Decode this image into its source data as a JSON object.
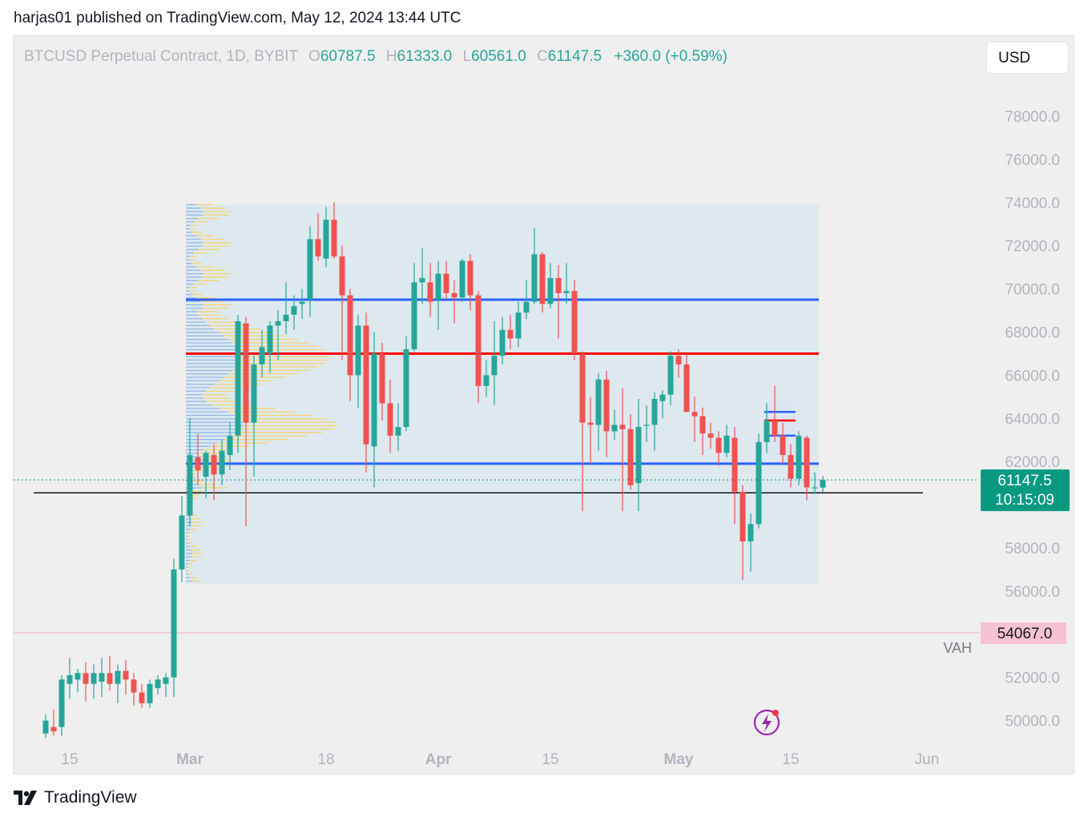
{
  "header": {
    "published_text": "harjas01 published on TradingView.com, May 12, 2024 13:44 UTC"
  },
  "symbol": {
    "name": "BTCUSD Perpetual Contract, 1D, BYBIT",
    "o_label": "O",
    "o_value": "60787.5",
    "h_label": "H",
    "h_value": "61333.0",
    "l_label": "L",
    "l_value": "60561.0",
    "c_label": "C",
    "c_value": "61147.5",
    "change": "+360.0 (+0.59%)"
  },
  "currency_button": "USD",
  "colors": {
    "up": "#26a69a",
    "down": "#ef5350",
    "blue_line": "#2962ff",
    "red_line": "#ff0000",
    "vp_blue": "#90b7ea",
    "vp_yellow": "#f7d56e",
    "vp_box": "#dbe6ef",
    "last_price_bg": "#089981",
    "alert_bg": "#f7c2d1"
  },
  "price_axis": {
    "ticks": [
      "78000.0",
      "76000.0",
      "74000.0",
      "72000.0",
      "70000.0",
      "68000.0",
      "66000.0",
      "64000.0",
      "62000.0",
      "58000.0",
      "56000.0",
      "52000.0",
      "50000.0"
    ],
    "last_price_label": "61147.5",
    "countdown_label": "10:15:09",
    "alert_label": "54067.0",
    "vah_label": "VAH"
  },
  "time_axis": {
    "labels": [
      "15",
      "Mar",
      "18",
      "Apr",
      "15",
      "May",
      "15",
      "Jun"
    ]
  },
  "chart_data": {
    "type": "candlestick",
    "series_name": "BTCUSD Perpetual Contract, 1D, BYBIT",
    "ylim": [
      49000,
      80000
    ],
    "x_label_positions": [
      {
        "label": "15",
        "day": 0
      },
      {
        "label": "Mar",
        "day": 15
      },
      {
        "label": "18",
        "day": 32
      },
      {
        "label": "Apr",
        "day": 46
      },
      {
        "label": "15",
        "day": 60
      },
      {
        "label": "May",
        "day": 76
      },
      {
        "label": "15",
        "day": 90
      },
      {
        "label": "Jun",
        "day": 107
      }
    ],
    "candles": [
      {
        "day": -3,
        "o": 49400,
        "h": 50300,
        "l": 49200,
        "c": 50000
      },
      {
        "day": -2,
        "o": 49700,
        "h": 50500,
        "l": 49300,
        "c": 49500
      },
      {
        "day": -1,
        "o": 49700,
        "h": 52100,
        "l": 49300,
        "c": 51900
      },
      {
        "day": 0,
        "o": 51700,
        "h": 52900,
        "l": 51000,
        "c": 52100
      },
      {
        "day": 1,
        "o": 51900,
        "h": 52400,
        "l": 51300,
        "c": 52200
      },
      {
        "day": 2,
        "o": 52200,
        "h": 52700,
        "l": 50900,
        "c": 51700
      },
      {
        "day": 3,
        "o": 51700,
        "h": 52600,
        "l": 51000,
        "c": 52200
      },
      {
        "day": 4,
        "o": 51800,
        "h": 52900,
        "l": 51100,
        "c": 52200
      },
      {
        "day": 5,
        "o": 52200,
        "h": 53000,
        "l": 51400,
        "c": 51700
      },
      {
        "day": 6,
        "o": 51700,
        "h": 52600,
        "l": 50800,
        "c": 52300
      },
      {
        "day": 7,
        "o": 52300,
        "h": 52800,
        "l": 51200,
        "c": 51900
      },
      {
        "day": 8,
        "o": 51900,
        "h": 52200,
        "l": 50700,
        "c": 51300
      },
      {
        "day": 9,
        "o": 51300,
        "h": 51700,
        "l": 50600,
        "c": 50800
      },
      {
        "day": 10,
        "o": 50800,
        "h": 51900,
        "l": 50600,
        "c": 51700
      },
      {
        "day": 11,
        "o": 51500,
        "h": 52100,
        "l": 51200,
        "c": 51900
      },
      {
        "day": 12,
        "o": 51700,
        "h": 52200,
        "l": 51100,
        "c": 52000
      },
      {
        "day": 13,
        "o": 52000,
        "h": 57500,
        "l": 51100,
        "c": 57000
      },
      {
        "day": 14,
        "o": 57000,
        "h": 60400,
        "l": 56400,
        "c": 59500
      },
      {
        "day": 15,
        "o": 59500,
        "h": 64000,
        "l": 59000,
        "c": 62300
      },
      {
        "day": 16,
        "o": 62200,
        "h": 63300,
        "l": 60900,
        "c": 61600
      },
      {
        "day": 17,
        "o": 61300,
        "h": 62500,
        "l": 60300,
        "c": 62400
      },
      {
        "day": 18,
        "o": 62300,
        "h": 62800,
        "l": 60200,
        "c": 61400
      },
      {
        "day": 19,
        "o": 61400,
        "h": 63000,
        "l": 60900,
        "c": 62500
      },
      {
        "day": 20,
        "o": 62300,
        "h": 63800,
        "l": 61600,
        "c": 63200
      },
      {
        "day": 21,
        "o": 63200,
        "h": 68800,
        "l": 62400,
        "c": 68500
      },
      {
        "day": 22,
        "o": 68400,
        "h": 68700,
        "l": 59000,
        "c": 63800
      },
      {
        "day": 23,
        "o": 63800,
        "h": 66900,
        "l": 61300,
        "c": 66500
      },
      {
        "day": 24,
        "o": 66500,
        "h": 68100,
        "l": 65900,
        "c": 67300
      },
      {
        "day": 25,
        "o": 67000,
        "h": 68500,
        "l": 66100,
        "c": 68300
      },
      {
        "day": 26,
        "o": 68300,
        "h": 69000,
        "l": 66700,
        "c": 68500
      },
      {
        "day": 27,
        "o": 68500,
        "h": 70300,
        "l": 67900,
        "c": 68800
      },
      {
        "day": 28,
        "o": 68800,
        "h": 69700,
        "l": 68100,
        "c": 69200
      },
      {
        "day": 29,
        "o": 69300,
        "h": 70000,
        "l": 68600,
        "c": 69400
      },
      {
        "day": 30,
        "o": 69500,
        "h": 72900,
        "l": 68700,
        "c": 72300
      },
      {
        "day": 31,
        "o": 72300,
        "h": 73500,
        "l": 71300,
        "c": 71500
      },
      {
        "day": 32,
        "o": 71400,
        "h": 73800,
        "l": 71000,
        "c": 73200
      },
      {
        "day": 33,
        "o": 73200,
        "h": 74000,
        "l": 71400,
        "c": 71500
      },
      {
        "day": 34,
        "o": 71500,
        "h": 72000,
        "l": 66700,
        "c": 69700
      },
      {
        "day": 35,
        "o": 69700,
        "h": 70000,
        "l": 64800,
        "c": 66000
      },
      {
        "day": 36,
        "o": 66000,
        "h": 68800,
        "l": 64500,
        "c": 68300
      },
      {
        "day": 37,
        "o": 68300,
        "h": 68900,
        "l": 61500,
        "c": 62800
      },
      {
        "day": 38,
        "o": 62700,
        "h": 68000,
        "l": 60800,
        "c": 67000
      },
      {
        "day": 39,
        "o": 67000,
        "h": 67500,
        "l": 63900,
        "c": 64700
      },
      {
        "day": 40,
        "o": 64700,
        "h": 65800,
        "l": 62400,
        "c": 63200
      },
      {
        "day": 41,
        "o": 63200,
        "h": 64700,
        "l": 62500,
        "c": 63600
      },
      {
        "day": 42,
        "o": 63600,
        "h": 67800,
        "l": 63400,
        "c": 67200
      },
      {
        "day": 43,
        "o": 67200,
        "h": 71200,
        "l": 67100,
        "c": 70300
      },
      {
        "day": 44,
        "o": 70300,
        "h": 71900,
        "l": 69300,
        "c": 70500
      },
      {
        "day": 45,
        "o": 70300,
        "h": 71200,
        "l": 68700,
        "c": 69400
      },
      {
        "day": 46,
        "o": 69500,
        "h": 71300,
        "l": 68100,
        "c": 70700
      },
      {
        "day": 47,
        "o": 70700,
        "h": 71300,
        "l": 69500,
        "c": 69800
      },
      {
        "day": 48,
        "o": 69800,
        "h": 70400,
        "l": 68400,
        "c": 69600
      },
      {
        "day": 49,
        "o": 69600,
        "h": 71400,
        "l": 69400,
        "c": 71300
      },
      {
        "day": 50,
        "o": 71300,
        "h": 71600,
        "l": 69000,
        "c": 69700
      },
      {
        "day": 51,
        "o": 69700,
        "h": 69900,
        "l": 64700,
        "c": 65500
      },
      {
        "day": 52,
        "o": 65500,
        "h": 66700,
        "l": 65000,
        "c": 66000
      },
      {
        "day": 53,
        "o": 66000,
        "h": 68500,
        "l": 64600,
        "c": 66900
      },
      {
        "day": 54,
        "o": 66900,
        "h": 68700,
        "l": 66500,
        "c": 68100
      },
      {
        "day": 55,
        "o": 68100,
        "h": 68800,
        "l": 67200,
        "c": 67700
      },
      {
        "day": 56,
        "o": 67700,
        "h": 69400,
        "l": 67300,
        "c": 68900
      },
      {
        "day": 57,
        "o": 68900,
        "h": 70400,
        "l": 68600,
        "c": 69400
      },
      {
        "day": 58,
        "o": 69400,
        "h": 72800,
        "l": 69300,
        "c": 71600
      },
      {
        "day": 59,
        "o": 71600,
        "h": 71700,
        "l": 68900,
        "c": 69300
      },
      {
        "day": 60,
        "o": 69300,
        "h": 71200,
        "l": 69100,
        "c": 70500
      },
      {
        "day": 61,
        "o": 70500,
        "h": 71100,
        "l": 67700,
        "c": 69800
      },
      {
        "day": 62,
        "o": 69800,
        "h": 71200,
        "l": 69300,
        "c": 69900
      },
      {
        "day": 63,
        "o": 69900,
        "h": 70400,
        "l": 66700,
        "c": 67000
      },
      {
        "day": 64,
        "o": 67000,
        "h": 67100,
        "l": 59700,
        "c": 63800
      },
      {
        "day": 65,
        "o": 63800,
        "h": 65000,
        "l": 61900,
        "c": 63700
      },
      {
        "day": 66,
        "o": 63700,
        "h": 66100,
        "l": 62500,
        "c": 65800
      },
      {
        "day": 67,
        "o": 65800,
        "h": 66200,
        "l": 62200,
        "c": 63400
      },
      {
        "day": 68,
        "o": 63400,
        "h": 64400,
        "l": 63000,
        "c": 63700
      },
      {
        "day": 69,
        "o": 63700,
        "h": 65400,
        "l": 59700,
        "c": 63500
      },
      {
        "day": 70,
        "o": 63500,
        "h": 64200,
        "l": 60700,
        "c": 60900
      },
      {
        "day": 71,
        "o": 61000,
        "h": 64900,
        "l": 59700,
        "c": 63600
      },
      {
        "day": 72,
        "o": 63700,
        "h": 64600,
        "l": 62900,
        "c": 63700
      },
      {
        "day": 73,
        "o": 63700,
        "h": 65200,
        "l": 62500,
        "c": 64900
      },
      {
        "day": 74,
        "o": 64800,
        "h": 65300,
        "l": 64000,
        "c": 65100
      },
      {
        "day": 75,
        "o": 65100,
        "h": 67100,
        "l": 64600,
        "c": 66900
      },
      {
        "day": 76,
        "o": 66900,
        "h": 67200,
        "l": 65900,
        "c": 66500
      },
      {
        "day": 77,
        "o": 66500,
        "h": 67000,
        "l": 64300,
        "c": 64300
      },
      {
        "day": 78,
        "o": 64300,
        "h": 65000,
        "l": 62900,
        "c": 64100
      },
      {
        "day": 79,
        "o": 64100,
        "h": 64500,
        "l": 62300,
        "c": 63300
      },
      {
        "day": 80,
        "o": 63300,
        "h": 63800,
        "l": 62600,
        "c": 63100
      },
      {
        "day": 81,
        "o": 63100,
        "h": 63400,
        "l": 61800,
        "c": 62400
      },
      {
        "day": 82,
        "o": 62400,
        "h": 63700,
        "l": 62200,
        "c": 63200
      },
      {
        "day": 83,
        "o": 63100,
        "h": 63600,
        "l": 59100,
        "c": 60600
      },
      {
        "day": 84,
        "o": 60600,
        "h": 60900,
        "l": 56500,
        "c": 58300
      },
      {
        "day": 85,
        "o": 58300,
        "h": 59600,
        "l": 56900,
        "c": 59100
      },
      {
        "day": 86,
        "o": 59100,
        "h": 63300,
        "l": 58900,
        "c": 62900
      },
      {
        "day": 87,
        "o": 62900,
        "h": 64700,
        "l": 62400,
        "c": 63900
      },
      {
        "day": 88,
        "o": 63900,
        "h": 65500,
        "l": 62900,
        "c": 63200
      },
      {
        "day": 89,
        "o": 63200,
        "h": 63800,
        "l": 61900,
        "c": 62300
      },
      {
        "day": 90,
        "o": 62300,
        "h": 62800,
        "l": 60800,
        "c": 61200
      },
      {
        "day": 91,
        "o": 61200,
        "h": 63400,
        "l": 60900,
        "c": 63200
      },
      {
        "day": 92,
        "o": 63100,
        "h": 63200,
        "l": 60200,
        "c": 60800
      },
      {
        "day": 93,
        "o": 60800,
        "h": 61500,
        "l": 60500,
        "c": 60800
      },
      {
        "day": 94,
        "o": 60790,
        "h": 61333,
        "l": 60561,
        "c": 61147.5
      }
    ],
    "horizontal_lines": [
      {
        "price": 69500,
        "color": "#2962ff",
        "from_day": 15,
        "to_day": 93
      },
      {
        "price": 67000,
        "color": "#ff0000",
        "from_day": 15,
        "to_day": 93
      },
      {
        "price": 61900,
        "color": "#2962ff",
        "from_day": 15,
        "to_day": 93
      },
      {
        "price": 60550,
        "color": "#000000",
        "from_day": -4,
        "to_day": 106
      }
    ],
    "volume_profile_box": {
      "from_day": 15,
      "to_day": 93,
      "price_low": 56300,
      "price_high": 73900
    },
    "last_price": 61147.5,
    "alert_price": 54067.0
  },
  "footer": {
    "brand": "TradingView"
  }
}
